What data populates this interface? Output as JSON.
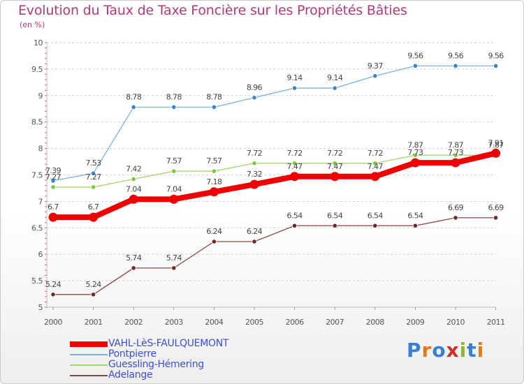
{
  "header": {
    "title": "Evolution du Taux de Taxe Foncière sur les Propriétés Bâties",
    "unit": "(en %)"
  },
  "logo": {
    "text": "Proxiti",
    "letters": [
      "P",
      "r",
      "o",
      "x",
      "i",
      "t",
      "i"
    ],
    "colors": [
      "#3a7fd0",
      "#e07a1c",
      "#3a7fd0",
      "#c8322d",
      "#8bb935",
      "#3a7fd0",
      "#e07a1c"
    ]
  },
  "chart_data": {
    "type": "line",
    "title": "Evolution du Taux de Taxe Foncière sur les Propriétés Bâties",
    "ylabel": "(en %)",
    "xlabel": "",
    "categories": [
      "2000",
      "2001",
      "2002",
      "2003",
      "2004",
      "2005",
      "2006",
      "2007",
      "2008",
      "2009",
      "2010",
      "2011"
    ],
    "ylim": [
      5,
      10
    ],
    "yticks": [
      "5",
      "5.5",
      "6",
      "6.5",
      "7",
      "7.5",
      "8",
      "8.5",
      "9",
      "9.5",
      "10"
    ],
    "grid": true,
    "legend_position": "bottom-left",
    "series": [
      {
        "name": "VAHL-LèS-FAULQUEMONT",
        "values": [
          6.7,
          6.7,
          7.04,
          7.04,
          7.18,
          7.32,
          7.47,
          7.47,
          7.47,
          7.73,
          7.73,
          7.91
        ],
        "labels": [
          "6.7",
          "6.7",
          "7.04",
          "7.04",
          "7.18",
          "7.32",
          "7.47",
          "7.47",
          "7.47",
          "7.73",
          "7.73",
          "7.91"
        ],
        "color": "#ee0000",
        "emphasis": true
      },
      {
        "name": "Pontpierre",
        "values": [
          7.39,
          7.53,
          8.78,
          8.78,
          8.78,
          8.96,
          9.14,
          9.14,
          9.37,
          9.56,
          9.56,
          9.56
        ],
        "labels": [
          "7.39",
          "7.53",
          "8.78",
          "8.78",
          "8.78",
          "8.96",
          "9.14",
          "9.14",
          "9.37",
          "9.56",
          "9.56",
          "9.56"
        ],
        "color": "#7ab0da",
        "marker": "#3a86c8"
      },
      {
        "name": "Guessling-Hémering",
        "values": [
          7.27,
          7.27,
          7.42,
          7.57,
          7.57,
          7.72,
          7.72,
          7.72,
          7.72,
          7.87,
          7.87,
          7.87
        ],
        "labels": [
          "7.27",
          "7.27",
          "7.42",
          "7.57",
          "7.57",
          "7.72",
          "7.72",
          "7.72",
          "7.72",
          "7.87",
          "7.87",
          "7.87"
        ],
        "color": "#a6d66e",
        "marker": "#7cc63c"
      },
      {
        "name": "Adelange",
        "values": [
          5.24,
          5.24,
          5.74,
          5.74,
          6.24,
          6.24,
          6.54,
          6.54,
          6.54,
          6.54,
          6.69,
          6.69
        ],
        "labels": [
          "5.24",
          "5.24",
          "5.74",
          "5.74",
          "6.24",
          "6.24",
          "6.54",
          "6.54",
          "6.54",
          "6.54",
          "6.69",
          "6.69"
        ],
        "color": "#8a4545",
        "marker": "#6b2b2b"
      }
    ]
  }
}
